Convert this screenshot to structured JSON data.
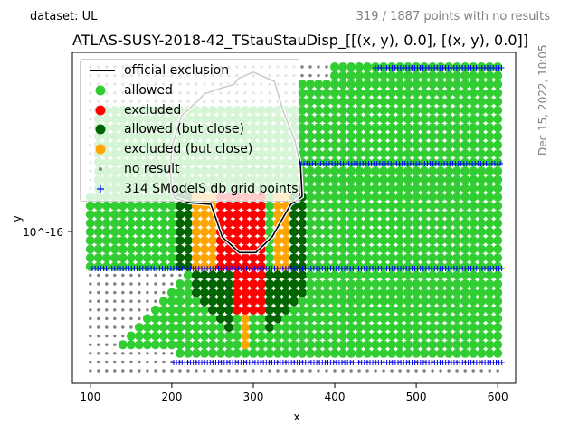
{
  "header": {
    "dataset": "dataset: UL",
    "no_results": "319 / 1887 points with no results",
    "timestamp": "Dec 15, 2022, 10:05"
  },
  "chart_data": {
    "type": "scatter",
    "title": "ATLAS-SUSY-2018-42_TStauStauDisp_[[(x, y), 0.0], [(x, y), 0.0]]",
    "xlabel": "x",
    "ylabel": "y",
    "xlim": [
      78,
      622
    ],
    "x_ticks": [
      100,
      200,
      300,
      400,
      500,
      600
    ],
    "y_scale": "log",
    "y_tick_label": "10^-16",
    "grid": false,
    "legend_position": "upper-left",
    "legend": [
      {
        "label": "official exclusion",
        "marker": "line",
        "color": "#000000"
      },
      {
        "label": "allowed",
        "marker": "circle",
        "color": "#32cd32"
      },
      {
        "label": "excluded",
        "marker": "circle",
        "color": "#ff0000"
      },
      {
        "label": "allowed (but close)",
        "marker": "circle",
        "color": "#006400"
      },
      {
        "label": "excluded (but close)",
        "marker": "circle",
        "color": "#ffa500"
      },
      {
        "label": "no result",
        "marker": "dot",
        "color": "#808080"
      },
      {
        "label": "314 SModelS db grid points",
        "marker": "plus",
        "color": "#0000ff"
      }
    ],
    "colors": {
      "allowed": "#32cd32",
      "excluded": "#ff0000",
      "allowed_close": "#006400",
      "excluded_close": "#ffa500",
      "no_result": "#808080",
      "grid_points": "#0000ff",
      "exclusion": "#000000"
    },
    "series": [
      {
        "name": "official exclusion",
        "x": [
          200,
          198,
          200,
          212,
          233,
          240,
          262,
          276,
          282,
          300,
          326,
          336,
          351,
          358,
          360,
          346,
          323,
          303,
          283,
          262,
          248,
          222,
          204,
          200
        ],
        "y": [
          0.58,
          0.64,
          0.72,
          0.82,
          0.87,
          0.89,
          0.91,
          0.92,
          0.94,
          0.96,
          0.93,
          0.84,
          0.74,
          0.66,
          0.56,
          0.535,
          0.43,
          0.38,
          0.38,
          0.43,
          0.535,
          0.54,
          0.555,
          0.58
        ],
        "y_unit": "fraction of plotted y-range (log scale, unlabelled except 10^-16)"
      }
    ]
  }
}
